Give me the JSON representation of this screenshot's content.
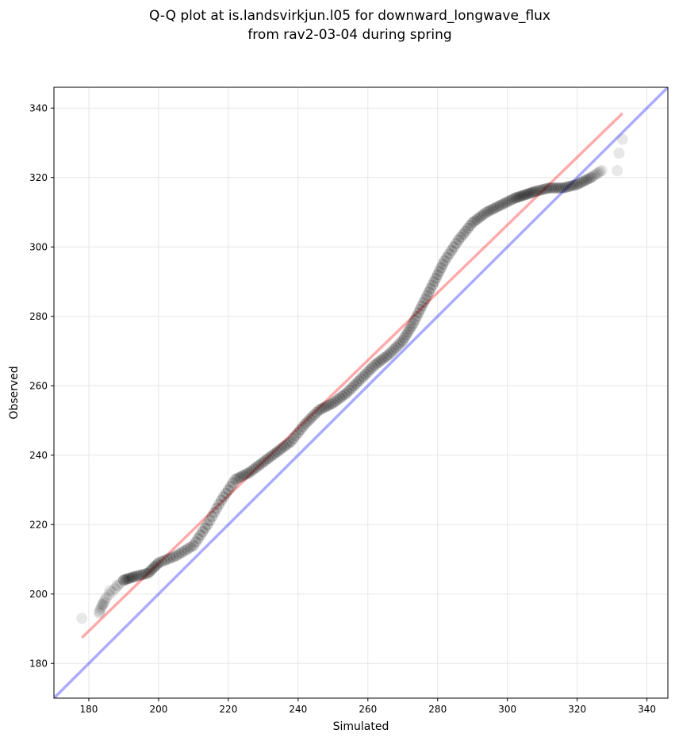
{
  "chart_data": {
    "type": "scatter",
    "title_line1": "Q-Q plot at is.landsvirkjun.l05 for downward_longwave_flux",
    "title_line2": "from rav2-03-04 during spring",
    "xlabel": "Simulated",
    "ylabel": "Observed",
    "xlim": [
      170,
      346
    ],
    "ylim": [
      170,
      346
    ],
    "xticks": [
      180,
      200,
      220,
      240,
      260,
      280,
      300,
      320,
      340
    ],
    "yticks": [
      180,
      200,
      220,
      240,
      260,
      280,
      300,
      320,
      340
    ],
    "grid": true,
    "reference_line": {
      "name": "1:1 line",
      "color": "#0000ff",
      "from": [
        170,
        170
      ],
      "to": [
        346,
        346
      ]
    },
    "fit_line": {
      "name": "fit",
      "color": "#ff0000",
      "from": [
        178,
        187.4
      ],
      "to": [
        333,
        338.5
      ]
    },
    "tail_points": [
      [
        178,
        193
      ],
      [
        183,
        194.5
      ],
      [
        184,
        197
      ],
      [
        186,
        201
      ],
      [
        188,
        202.5
      ],
      [
        190,
        204
      ],
      [
        331.5,
        322
      ],
      [
        332,
        327
      ],
      [
        333,
        331
      ]
    ],
    "quantile_curve": [
      [
        183,
        195
      ],
      [
        185,
        199
      ],
      [
        190,
        204
      ],
      [
        193,
        205
      ],
      [
        197,
        206
      ],
      [
        200,
        209
      ],
      [
        205,
        211
      ],
      [
        210,
        214
      ],
      [
        214,
        220
      ],
      [
        218,
        227
      ],
      [
        222,
        233
      ],
      [
        226,
        235
      ],
      [
        230,
        238
      ],
      [
        234,
        241
      ],
      [
        238,
        244
      ],
      [
        242,
        249
      ],
      [
        246,
        253
      ],
      [
        250,
        255
      ],
      [
        254,
        258
      ],
      [
        258,
        262
      ],
      [
        262,
        266
      ],
      [
        266,
        269
      ],
      [
        270,
        273
      ],
      [
        273,
        278
      ],
      [
        276,
        284
      ],
      [
        279,
        290
      ],
      [
        282,
        296
      ],
      [
        286,
        302
      ],
      [
        290,
        307
      ],
      [
        294,
        310
      ],
      [
        298,
        312
      ],
      [
        302,
        314
      ],
      [
        305,
        315
      ],
      [
        308,
        316
      ],
      [
        312,
        317
      ],
      [
        316,
        317
      ],
      [
        320,
        318
      ],
      [
        324,
        320
      ],
      [
        327,
        322
      ]
    ],
    "point_color": "#000000"
  }
}
